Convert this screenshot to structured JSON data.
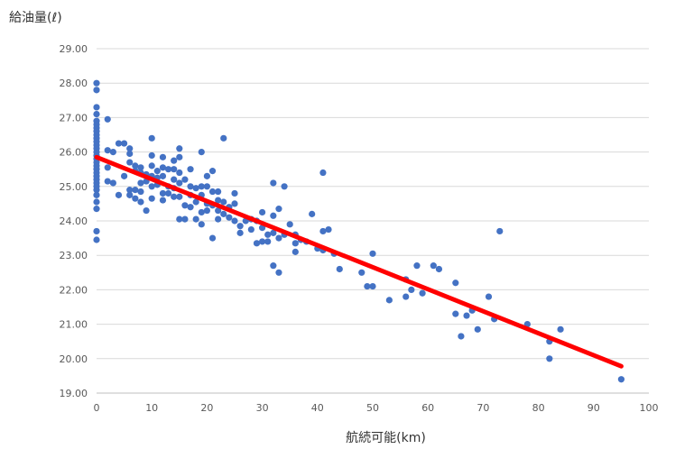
{
  "chart_data": {
    "type": "scatter",
    "title": "",
    "ylabel": "給油量(ℓ)",
    "xlabel": "航続可能(km)",
    "xlim": [
      0,
      100
    ],
    "ylim": [
      19,
      29
    ],
    "xticks": [
      "0",
      "10",
      "20",
      "30",
      "40",
      "50",
      "60",
      "70",
      "80",
      "90",
      "100"
    ],
    "yticks": [
      "19.00",
      "20.00",
      "21.00",
      "22.00",
      "23.00",
      "24.00",
      "25.00",
      "26.00",
      "27.00",
      "28.00",
      "29.00"
    ],
    "grid": "horizontal",
    "point_color": "#4472C4",
    "trendline_color": "#FF0000",
    "trendline": {
      "x": [
        0,
        95
      ],
      "y": [
        25.85,
        19.78
      ]
    },
    "points": [
      [
        0,
        28.0
      ],
      [
        0,
        27.8
      ],
      [
        0,
        27.3
      ],
      [
        0,
        27.1
      ],
      [
        0,
        26.9
      ],
      [
        0,
        26.8
      ],
      [
        0,
        26.7
      ],
      [
        0,
        26.6
      ],
      [
        0,
        26.5
      ],
      [
        0,
        26.4
      ],
      [
        0,
        26.3
      ],
      [
        0,
        26.2
      ],
      [
        0,
        26.1
      ],
      [
        0,
        26.0
      ],
      [
        0,
        25.9
      ],
      [
        0,
        25.8
      ],
      [
        0,
        25.7
      ],
      [
        0,
        25.6
      ],
      [
        0,
        25.5
      ],
      [
        0,
        25.4
      ],
      [
        0,
        25.3
      ],
      [
        0,
        25.2
      ],
      [
        0,
        25.1
      ],
      [
        0,
        25.0
      ],
      [
        0,
        24.9
      ],
      [
        0,
        24.75
      ],
      [
        0,
        24.55
      ],
      [
        0,
        24.35
      ],
      [
        0,
        23.7
      ],
      [
        0,
        23.45
      ],
      [
        2,
        26.95
      ],
      [
        2,
        26.05
      ],
      [
        2,
        25.55
      ],
      [
        2,
        25.15
      ],
      [
        3,
        26.0
      ],
      [
        3,
        25.1
      ],
      [
        4,
        26.25
      ],
      [
        4,
        24.75
      ],
      [
        5,
        26.25
      ],
      [
        5,
        25.3
      ],
      [
        6,
        26.1
      ],
      [
        6,
        25.95
      ],
      [
        6,
        25.7
      ],
      [
        6,
        24.9
      ],
      [
        6,
        24.75
      ],
      [
        7,
        25.6
      ],
      [
        7,
        25.45
      ],
      [
        7,
        24.9
      ],
      [
        7,
        24.65
      ],
      [
        8,
        25.55
      ],
      [
        8,
        25.4
      ],
      [
        8,
        25.1
      ],
      [
        8,
        24.85
      ],
      [
        8,
        24.55
      ],
      [
        9,
        25.35
      ],
      [
        9,
        25.15
      ],
      [
        9,
        24.3
      ],
      [
        10,
        26.4
      ],
      [
        10,
        25.9
      ],
      [
        10,
        25.6
      ],
      [
        10,
        25.3
      ],
      [
        10,
        25.0
      ],
      [
        10,
        24.65
      ],
      [
        11,
        25.45
      ],
      [
        11,
        25.25
      ],
      [
        11,
        25.05
      ],
      [
        12,
        25.85
      ],
      [
        12,
        25.55
      ],
      [
        12,
        25.3
      ],
      [
        12,
        24.8
      ],
      [
        12,
        24.6
      ],
      [
        13,
        25.5
      ],
      [
        13,
        25.0
      ],
      [
        13,
        24.8
      ],
      [
        14,
        25.75
      ],
      [
        14,
        25.5
      ],
      [
        14,
        25.2
      ],
      [
        14,
        24.95
      ],
      [
        14,
        24.7
      ],
      [
        15,
        26.1
      ],
      [
        15,
        25.85
      ],
      [
        15,
        25.4
      ],
      [
        15,
        25.1
      ],
      [
        15,
        24.7
      ],
      [
        15,
        24.05
      ],
      [
        16,
        25.2
      ],
      [
        16,
        24.45
      ],
      [
        16,
        24.05
      ],
      [
        17,
        25.5
      ],
      [
        17,
        25.0
      ],
      [
        17,
        24.75
      ],
      [
        17,
        24.4
      ],
      [
        18,
        24.95
      ],
      [
        18,
        24.55
      ],
      [
        18,
        24.05
      ],
      [
        19,
        26.0
      ],
      [
        19,
        25.0
      ],
      [
        19,
        24.75
      ],
      [
        19,
        24.25
      ],
      [
        19,
        23.9
      ],
      [
        20,
        25.3
      ],
      [
        20,
        25.0
      ],
      [
        20,
        24.5
      ],
      [
        20,
        24.3
      ],
      [
        21,
        25.45
      ],
      [
        21,
        24.85
      ],
      [
        21,
        24.45
      ],
      [
        21,
        23.5
      ],
      [
        22,
        24.85
      ],
      [
        22,
        24.6
      ],
      [
        22,
        24.3
      ],
      [
        22,
        24.05
      ],
      [
        23,
        26.4
      ],
      [
        23,
        24.55
      ],
      [
        23,
        24.2
      ],
      [
        24,
        24.4
      ],
      [
        24,
        24.1
      ],
      [
        25,
        24.8
      ],
      [
        25,
        24.5
      ],
      [
        25,
        24.0
      ],
      [
        26,
        23.85
      ],
      [
        26,
        23.65
      ],
      [
        27,
        24.0
      ],
      [
        28,
        24.05
      ],
      [
        28,
        23.75
      ],
      [
        29,
        24.0
      ],
      [
        29,
        23.35
      ],
      [
        30,
        24.25
      ],
      [
        30,
        23.8
      ],
      [
        30,
        23.4
      ],
      [
        31,
        23.6
      ],
      [
        31,
        23.4
      ],
      [
        32,
        25.1
      ],
      [
        32,
        24.15
      ],
      [
        32,
        23.65
      ],
      [
        32,
        22.7
      ],
      [
        33,
        24.35
      ],
      [
        33,
        23.5
      ],
      [
        33,
        22.5
      ],
      [
        34,
        25.0
      ],
      [
        34,
        23.6
      ],
      [
        35,
        23.9
      ],
      [
        36,
        23.6
      ],
      [
        36,
        23.35
      ],
      [
        36,
        23.1
      ],
      [
        37,
        23.45
      ],
      [
        38,
        23.4
      ],
      [
        39,
        24.2
      ],
      [
        40,
        23.2
      ],
      [
        41,
        25.4
      ],
      [
        41,
        23.7
      ],
      [
        41,
        23.15
      ],
      [
        42,
        23.75
      ],
      [
        43,
        23.05
      ],
      [
        44,
        22.6
      ],
      [
        48,
        22.5
      ],
      [
        49,
        22.1
      ],
      [
        50,
        23.05
      ],
      [
        50,
        22.1
      ],
      [
        53,
        21.7
      ],
      [
        56,
        22.3
      ],
      [
        56,
        21.8
      ],
      [
        57,
        22.0
      ],
      [
        58,
        22.7
      ],
      [
        59,
        21.9
      ],
      [
        61,
        22.7
      ],
      [
        62,
        22.6
      ],
      [
        65,
        22.2
      ],
      [
        65,
        21.3
      ],
      [
        66,
        20.65
      ],
      [
        67,
        21.25
      ],
      [
        68,
        21.4
      ],
      [
        69,
        20.85
      ],
      [
        71,
        21.8
      ],
      [
        72,
        21.15
      ],
      [
        73,
        23.7
      ],
      [
        78,
        21.0
      ],
      [
        82,
        20.5
      ],
      [
        82,
        20.0
      ],
      [
        84,
        20.85
      ],
      [
        95,
        19.4
      ]
    ]
  }
}
